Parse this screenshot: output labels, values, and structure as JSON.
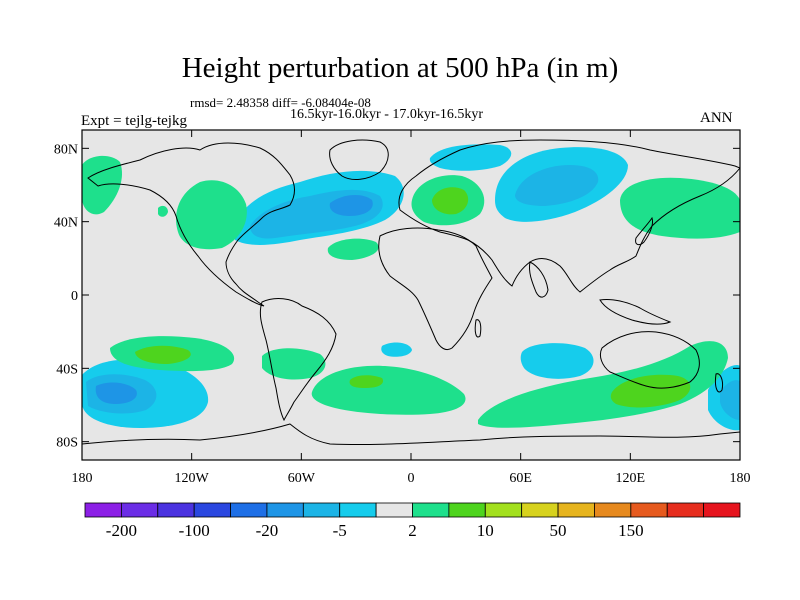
{
  "title": "Height perturbation at 500 hPa (in m)",
  "stats": "rmsd= 2.48358 diff= -6.08404e-08",
  "period": "16.5kyr-16.0kyr - 17.0kyr-16.5kyr",
  "experiment": "Expt = tejlg-tejkg",
  "season": "ANN",
  "map": {
    "lon_range": [
      -180,
      180
    ],
    "lat_range": [
      -90,
      90
    ],
    "lat_ticks": [
      {
        "value": 80,
        "label": "80N"
      },
      {
        "value": 40,
        "label": "40N"
      },
      {
        "value": 0,
        "label": "0"
      },
      {
        "value": -40,
        "label": "40S"
      },
      {
        "value": -80,
        "label": "80S"
      }
    ],
    "lon_ticks": [
      {
        "value": -180,
        "label": "180"
      },
      {
        "value": -120,
        "label": "120W"
      },
      {
        "value": -60,
        "label": "60W"
      },
      {
        "value": 0,
        "label": "0"
      },
      {
        "value": 60,
        "label": "60E"
      },
      {
        "value": 120,
        "label": "120E"
      },
      {
        "value": 180,
        "label": "180"
      }
    ],
    "background_color": "#e6e6e6",
    "neutral_range": [
      -2,
      2
    ]
  },
  "colorbar": {
    "colors": [
      "#8c1fe6",
      "#6b2de6",
      "#4b33e0",
      "#2a47e0",
      "#1e6fe6",
      "#1e95e6",
      "#1cb4e6",
      "#16ccec",
      "#e6e6e6",
      "#1ee08c",
      "#4ed41e",
      "#a3e01e",
      "#d7d21e",
      "#e6b41e",
      "#e6891e",
      "#e65a1e",
      "#e62d1e",
      "#e6141e"
    ],
    "labels": [
      {
        "boundary": 1,
        "text": "-200"
      },
      {
        "boundary": 3,
        "text": "-100"
      },
      {
        "boundary": 5,
        "text": "-20"
      },
      {
        "boundary": 7,
        "text": "-5"
      },
      {
        "boundary": 9,
        "text": "2"
      },
      {
        "boundary": 11,
        "text": "10"
      },
      {
        "boundary": 13,
        "text": "50"
      },
      {
        "boundary": 15,
        "text": "150"
      }
    ]
  },
  "colors": {
    "neg_weak": "#16ccec",
    "neg_mid": "#1cb4e6",
    "neg_strong": "#1e95e6",
    "pos_weak": "#1ee08c",
    "pos_mid": "#4ed41e",
    "coast": "#000000"
  }
}
